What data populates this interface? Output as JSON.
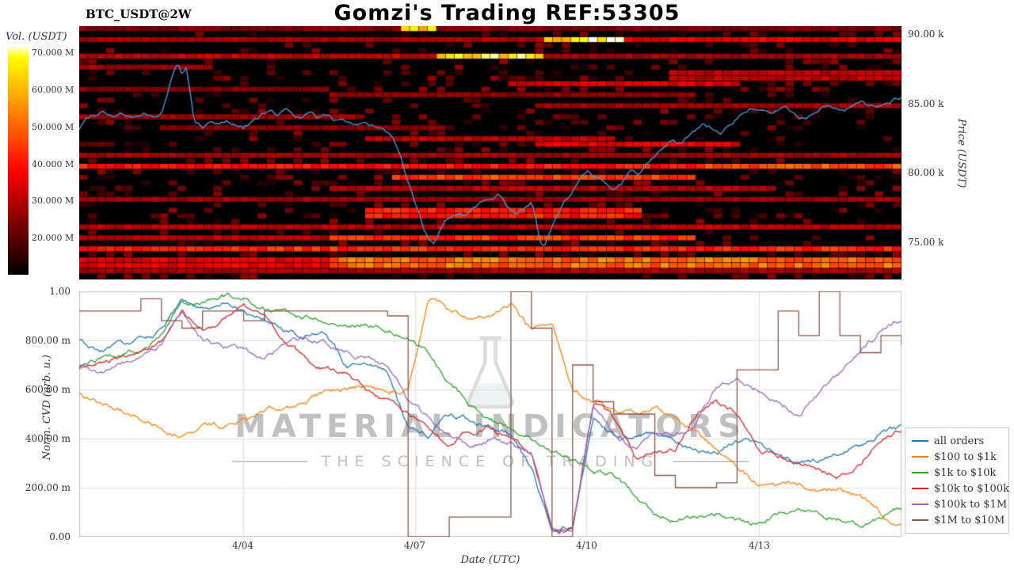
{
  "header": {
    "symbol": "BTC_USDT@2W",
    "title": "Gomzi's Trading REF:53305"
  },
  "watermark": {
    "line1": "MATERIAL INDICATORS",
    "line2": "THE SCIENCE OF TRADING"
  },
  "chart_data": [
    {
      "type": "heatmap",
      "description": "Order book liquidity heatmap with BTC price line overlay",
      "colorbar": {
        "label": "Vol. (USDT)",
        "unit": "M",
        "min": 10,
        "max": 72,
        "ticks": [
          {
            "label": "70.000 M",
            "value": 70
          },
          {
            "label": "60.000 M",
            "value": 60
          },
          {
            "label": "50.000 M",
            "value": 50
          },
          {
            "label": "40.000 M",
            "value": 40
          },
          {
            "label": "30.000 M",
            "value": 30
          },
          {
            "label": "20.000 M",
            "value": 20
          }
        ]
      },
      "price_axis": {
        "label": "Price (USDT)",
        "min": 72.3,
        "max": 90.6,
        "unit": "k",
        "ticks": [
          {
            "label": "90.00 k",
            "value": 90
          },
          {
            "label": "85.00 k",
            "value": 85
          },
          {
            "label": "80.00 k",
            "value": 80
          },
          {
            "label": "75.00 k",
            "value": 75
          }
        ]
      },
      "price_line": {
        "name": "BTC price",
        "color": "#4f94d4",
        "points": [
          [
            0,
            83.2
          ],
          [
            0.01,
            84.0
          ],
          [
            0.02,
            84.3
          ],
          [
            0.03,
            84.6
          ],
          [
            0.04,
            84.2
          ],
          [
            0.05,
            84.4
          ],
          [
            0.06,
            84.1
          ],
          [
            0.07,
            83.9
          ],
          [
            0.08,
            84.2
          ],
          [
            0.09,
            84.0
          ],
          [
            0.1,
            84.3
          ],
          [
            0.105,
            85.2
          ],
          [
            0.11,
            86.3
          ],
          [
            0.115,
            87.3
          ],
          [
            0.12,
            87.8
          ],
          [
            0.125,
            87.0
          ],
          [
            0.13,
            87.5
          ],
          [
            0.135,
            85.8
          ],
          [
            0.14,
            83.8
          ],
          [
            0.15,
            83.2
          ],
          [
            0.16,
            83.6
          ],
          [
            0.17,
            83.4
          ],
          [
            0.18,
            83.7
          ],
          [
            0.19,
            83.5
          ],
          [
            0.2,
            83.3
          ],
          [
            0.21,
            83.8
          ],
          [
            0.22,
            84.1
          ],
          [
            0.23,
            84.4
          ],
          [
            0.24,
            84.2
          ],
          [
            0.25,
            84.6
          ],
          [
            0.26,
            84.3
          ],
          [
            0.27,
            84.0
          ],
          [
            0.28,
            84.2
          ],
          [
            0.29,
            83.9
          ],
          [
            0.3,
            84.1
          ],
          [
            0.31,
            83.8
          ],
          [
            0.32,
            84.0
          ],
          [
            0.33,
            83.7
          ],
          [
            0.34,
            83.5
          ],
          [
            0.35,
            83.6
          ],
          [
            0.36,
            83.3
          ],
          [
            0.37,
            83.0
          ],
          [
            0.38,
            82.6
          ],
          [
            0.39,
            81.0
          ],
          [
            0.4,
            79.2
          ],
          [
            0.41,
            77.5
          ],
          [
            0.42,
            75.8
          ],
          [
            0.43,
            74.8
          ],
          [
            0.44,
            75.8
          ],
          [
            0.45,
            76.6
          ],
          [
            0.46,
            77.2
          ],
          [
            0.47,
            77.0
          ],
          [
            0.48,
            77.6
          ],
          [
            0.49,
            78.0
          ],
          [
            0.5,
            78.4
          ],
          [
            0.51,
            78.6
          ],
          [
            0.52,
            77.6
          ],
          [
            0.53,
            76.9
          ],
          [
            0.54,
            77.4
          ],
          [
            0.55,
            78.0
          ],
          [
            0.555,
            76.8
          ],
          [
            0.56,
            75.2
          ],
          [
            0.565,
            74.7
          ],
          [
            0.57,
            75.4
          ],
          [
            0.58,
            76.6
          ],
          [
            0.59,
            77.8
          ],
          [
            0.6,
            78.6
          ],
          [
            0.61,
            79.6
          ],
          [
            0.62,
            79.9
          ],
          [
            0.63,
            79.6
          ],
          [
            0.64,
            79.2
          ],
          [
            0.65,
            78.9
          ],
          [
            0.66,
            79.4
          ],
          [
            0.67,
            80.3
          ],
          [
            0.68,
            80.0
          ],
          [
            0.69,
            80.6
          ],
          [
            0.7,
            81.3
          ],
          [
            0.71,
            82.0
          ],
          [
            0.72,
            82.6
          ],
          [
            0.73,
            82.2
          ],
          [
            0.74,
            82.8
          ],
          [
            0.75,
            83.1
          ],
          [
            0.76,
            83.4
          ],
          [
            0.77,
            83.2
          ],
          [
            0.78,
            82.9
          ],
          [
            0.79,
            83.3
          ],
          [
            0.8,
            84.0
          ],
          [
            0.81,
            84.4
          ],
          [
            0.82,
            84.7
          ],
          [
            0.83,
            84.4
          ],
          [
            0.84,
            84.1
          ],
          [
            0.85,
            84.4
          ],
          [
            0.86,
            84.6
          ],
          [
            0.87,
            84.3
          ],
          [
            0.88,
            84.0
          ],
          [
            0.89,
            84.2
          ],
          [
            0.9,
            84.6
          ],
          [
            0.91,
            84.9
          ],
          [
            0.92,
            84.5
          ],
          [
            0.93,
            84.2
          ],
          [
            0.94,
            84.7
          ],
          [
            0.95,
            85.0
          ],
          [
            0.96,
            84.7
          ],
          [
            0.97,
            84.9
          ],
          [
            0.98,
            85.1
          ],
          [
            0.99,
            85.3
          ],
          [
            1,
            85.5
          ]
        ]
      },
      "liquidity_bands": [
        {
          "p": 90.25,
          "t0": 0,
          "t1": 1,
          "i": 0.22,
          "h": 0.45
        },
        {
          "p": 90.45,
          "t0": 0.395,
          "t1": 0.43,
          "i": 0.93,
          "h": 0.5
        },
        {
          "p": 89.5,
          "t0": 0,
          "t1": 0.56,
          "i": 0.3,
          "h": 0.5
        },
        {
          "p": 89.5,
          "t0": 0.56,
          "t1": 0.665,
          "i": 0.95,
          "h": 0.55
        },
        {
          "p": 89.5,
          "t0": 0.665,
          "t1": 1,
          "i": 0.42,
          "h": 0.5
        },
        {
          "p": 88.45,
          "t0": 0,
          "t1": 0.43,
          "i": 0.36,
          "h": 0.5
        },
        {
          "p": 88.45,
          "t0": 0.43,
          "t1": 0.565,
          "i": 0.88,
          "h": 0.55
        },
        {
          "p": 88.45,
          "t0": 0.565,
          "t1": 1,
          "i": 0.3,
          "h": 0.5
        },
        {
          "p": 87.6,
          "t0": 0,
          "t1": 0.15,
          "i": 0.3,
          "h": 0.45
        },
        {
          "p": 87.0,
          "t0": 0.72,
          "t1": 1,
          "i": 0.34,
          "h": 0.45
        },
        {
          "p": 86.3,
          "t0": 0.52,
          "t1": 0.8,
          "i": 0.4,
          "h": 0.45
        },
        {
          "p": 86.0,
          "t0": 0,
          "t1": 0.3,
          "i": 0.24,
          "h": 0.45
        },
        {
          "p": 85.5,
          "t0": 0.3,
          "t1": 0.75,
          "i": 0.26,
          "h": 0.45
        },
        {
          "p": 84.8,
          "t0": 0.55,
          "t1": 1,
          "i": 0.3,
          "h": 0.45
        },
        {
          "p": 84.2,
          "t0": 0,
          "t1": 0.35,
          "i": 0.28,
          "h": 0.45
        },
        {
          "p": 83.4,
          "t0": 0.1,
          "t1": 0.45,
          "i": 0.25,
          "h": 0.45
        },
        {
          "p": 82.6,
          "t0": 0.35,
          "t1": 0.65,
          "i": 0.34,
          "h": 0.45
        },
        {
          "p": 82.0,
          "t0": 0.55,
          "t1": 0.8,
          "i": 0.42,
          "h": 0.45
        },
        {
          "p": 81.2,
          "t0": 0,
          "t1": 1,
          "i": 0.3,
          "h": 0.45
        },
        {
          "p": 80.4,
          "t0": 0,
          "t1": 0.75,
          "i": 0.5,
          "h": 0.5
        },
        {
          "p": 80.4,
          "t0": 0.75,
          "t1": 1,
          "i": 0.62,
          "h": 0.5
        },
        {
          "p": 79.6,
          "t0": 0.38,
          "t1": 0.75,
          "i": 0.58,
          "h": 0.5
        },
        {
          "p": 78.8,
          "t0": 0.3,
          "t1": 0.85,
          "i": 0.34,
          "h": 0.45
        },
        {
          "p": 78.0,
          "t0": 0,
          "t1": 1,
          "i": 0.28,
          "h": 0.45
        },
        {
          "p": 77.1,
          "t0": 0.35,
          "t1": 0.68,
          "i": 0.52,
          "h": 0.5
        },
        {
          "p": 76.2,
          "t0": 0,
          "t1": 1,
          "i": 0.34,
          "h": 0.45
        },
        {
          "p": 75.3,
          "t0": 0.3,
          "t1": 0.75,
          "i": 0.56,
          "h": 0.5
        },
        {
          "p": 75.3,
          "t0": 0,
          "t1": 0.3,
          "i": 0.34,
          "h": 0.45
        },
        {
          "p": 74.4,
          "t0": 0,
          "t1": 1,
          "i": 0.55,
          "h": 0.5
        },
        {
          "p": 73.5,
          "t0": 0.3,
          "t1": 1,
          "i": 0.68,
          "h": 0.55
        },
        {
          "p": 73.5,
          "t0": 0,
          "t1": 0.3,
          "i": 0.42,
          "h": 0.5
        },
        {
          "p": 72.8,
          "t0": 0,
          "t1": 1,
          "i": 0.3,
          "h": 0.45
        }
      ],
      "noise": {
        "seed": 7,
        "density": 0.2,
        "max_intensity": 0.22
      }
    },
    {
      "type": "line",
      "xlabel": "Date (UTC)",
      "ylabel": "Norm. CVD (arb. u.)",
      "ylim": [
        0,
        1
      ],
      "grid": true,
      "legend_position": "right-outside",
      "jitter": 0.018,
      "yticks": [
        {
          "label": "1.00",
          "value": 1
        },
        {
          "label": "800.00 m",
          "value": 0.8
        },
        {
          "label": "600.00 m",
          "value": 0.6
        },
        {
          "label": "400.00 m",
          "value": 0.4
        },
        {
          "label": "200.00 m",
          "value": 0.2
        },
        {
          "label": "0.00",
          "value": 0
        }
      ],
      "xticks": [
        {
          "label": "4/04",
          "t": 0.199
        },
        {
          "label": "4/07",
          "t": 0.408
        },
        {
          "label": "4/10",
          "t": 0.617
        },
        {
          "label": "4/13",
          "t": 0.827
        }
      ],
      "x_t": [
        0,
        0.025,
        0.05,
        0.075,
        0.1,
        0.125,
        0.15,
        0.175,
        0.2,
        0.225,
        0.25,
        0.275,
        0.3,
        0.325,
        0.35,
        0.375,
        0.4,
        0.425,
        0.45,
        0.475,
        0.5,
        0.525,
        0.55,
        0.575,
        0.6,
        0.625,
        0.65,
        0.675,
        0.7,
        0.725,
        0.75,
        0.775,
        0.8,
        0.825,
        0.85,
        0.875,
        0.9,
        0.925,
        0.95,
        0.975,
        1
      ],
      "series": [
        {
          "name": "all orders",
          "color": "#1f77b4",
          "step": false,
          "values": [
            0.8,
            0.75,
            0.78,
            0.8,
            0.84,
            0.95,
            0.92,
            0.95,
            0.93,
            0.88,
            0.85,
            0.82,
            0.83,
            0.7,
            0.72,
            0.68,
            0.45,
            0.42,
            0.5,
            0.48,
            0.45,
            0.42,
            0.28,
            0.03,
            0.05,
            0.48,
            0.42,
            0.4,
            0.42,
            0.4,
            0.36,
            0.34,
            0.38,
            0.4,
            0.34,
            0.3,
            0.31,
            0.34,
            0.38,
            0.42,
            0.45
          ]
        },
        {
          "name": "$100 to $1k",
          "color": "#ff7f0e",
          "step": false,
          "values": [
            0.58,
            0.55,
            0.52,
            0.48,
            0.44,
            0.42,
            0.46,
            0.45,
            0.48,
            0.5,
            0.53,
            0.55,
            0.58,
            0.6,
            0.62,
            0.58,
            0.6,
            0.98,
            0.92,
            0.88,
            0.9,
            0.95,
            0.85,
            0.88,
            0.62,
            0.55,
            0.52,
            0.5,
            0.52,
            0.48,
            0.42,
            0.35,
            0.28,
            0.22,
            0.2,
            0.22,
            0.18,
            0.2,
            0.16,
            0.1,
            0.04
          ]
        },
        {
          "name": "$1k to $10k",
          "color": "#2ca02c",
          "step": false,
          "values": [
            0.7,
            0.72,
            0.73,
            0.76,
            0.82,
            0.96,
            0.95,
            0.98,
            0.96,
            0.93,
            0.92,
            0.9,
            0.88,
            0.87,
            0.86,
            0.84,
            0.82,
            0.75,
            0.62,
            0.55,
            0.48,
            0.44,
            0.4,
            0.35,
            0.32,
            0.28,
            0.25,
            0.18,
            0.1,
            0.06,
            0.08,
            0.1,
            0.07,
            0.05,
            0.1,
            0.12,
            0.1,
            0.07,
            0.05,
            0.08,
            0.12
          ]
        },
        {
          "name": "$10k to $100k",
          "color": "#d62728",
          "step": false,
          "values": [
            0.68,
            0.7,
            0.73,
            0.76,
            0.8,
            0.93,
            0.85,
            0.88,
            0.93,
            0.9,
            0.8,
            0.72,
            0.68,
            0.65,
            0.6,
            0.55,
            0.5,
            0.44,
            0.36,
            0.42,
            0.45,
            0.4,
            0.34,
            0.02,
            0.03,
            0.55,
            0.48,
            0.32,
            0.33,
            0.36,
            0.5,
            0.55,
            0.5,
            0.35,
            0.32,
            0.3,
            0.27,
            0.25,
            0.3,
            0.4,
            0.44
          ]
        },
        {
          "name": "$100k to $1M",
          "color": "#9467bd",
          "step": false,
          "values": [
            0.7,
            0.68,
            0.7,
            0.73,
            0.78,
            0.92,
            0.8,
            0.78,
            0.76,
            0.73,
            0.78,
            0.8,
            0.78,
            0.76,
            0.73,
            0.7,
            0.55,
            0.48,
            0.42,
            0.38,
            0.4,
            0.38,
            0.34,
            0.02,
            0.03,
            0.52,
            0.42,
            0.36,
            0.42,
            0.4,
            0.46,
            0.6,
            0.66,
            0.6,
            0.55,
            0.5,
            0.6,
            0.66,
            0.74,
            0.84,
            0.88
          ]
        },
        {
          "name": "$1M to $10M",
          "color": "#8c564b",
          "step": true,
          "values": [
            0.92,
            0.92,
            0.92,
            0.97,
            0.88,
            0.85,
            0.92,
            0.92,
            0.88,
            0.92,
            0.92,
            0.92,
            0.92,
            0.92,
            0.92,
            0.9,
            0.0,
            0.0,
            0.08,
            0.08,
            0.08,
            1.0,
            0.85,
            0.0,
            0.7,
            0.55,
            0.5,
            0.5,
            0.25,
            0.2,
            0.2,
            0.22,
            0.68,
            0.68,
            0.92,
            0.82,
            1.0,
            0.82,
            0.75,
            0.82,
            0.78
          ]
        }
      ]
    }
  ]
}
